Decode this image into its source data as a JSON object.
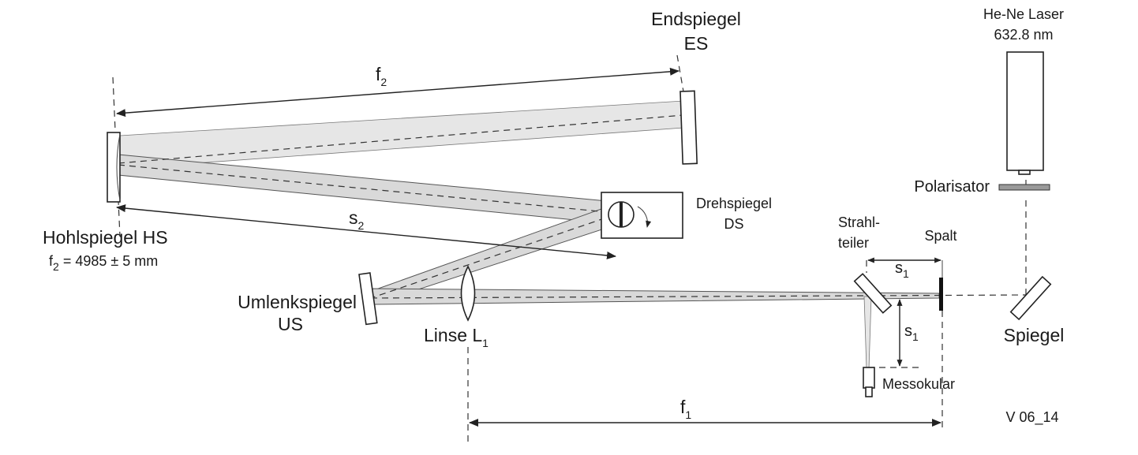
{
  "labels": {
    "endspiegel": "Endspiegel",
    "es": "ES",
    "laser": "He-Ne Laser",
    "wavelength": "632.8 nm",
    "f2_symbol": "f",
    "f2_index": "2",
    "polarisator": "Polarisator",
    "drehspiegel": "Drehspiegel",
    "ds": "DS",
    "s2_symbol": "s",
    "s2_index": "2",
    "strahl": "Strahl-",
    "teiler": "teiler",
    "spalt": "Spalt",
    "s1_symbol": "s",
    "s1_index": "1",
    "hohlspiegel": "Hohlspiegel  HS",
    "f2_eq_f": "f",
    "f2_eq_index": "2",
    "f2_eq_value": " = 4985 ± 5 mm",
    "umlenkspiegel": "Umlenkspiegel",
    "us": "US",
    "linse": "Linse  L",
    "linse_index": "1",
    "spiegel": "Spiegel",
    "messokular": "Messokular",
    "f1_symbol": "f",
    "f1_index": "1",
    "figure_id": "V 06_14"
  }
}
